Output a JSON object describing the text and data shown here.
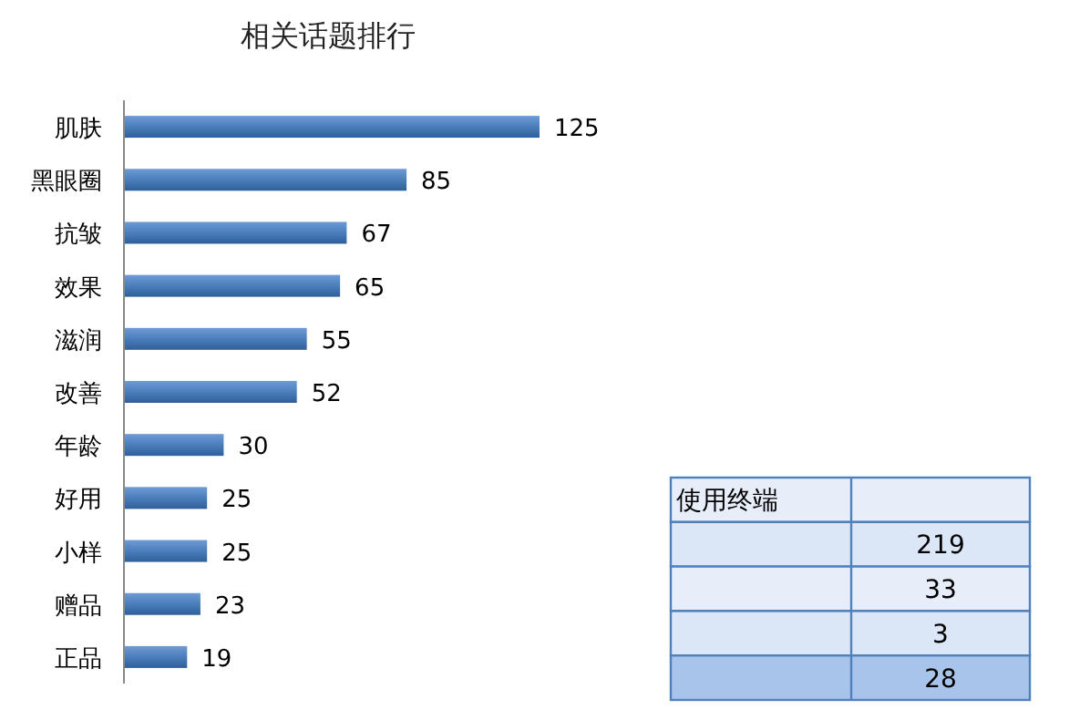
{
  "chart_data": [
    {
      "type": "bar",
      "orientation": "horizontal",
      "title": "相关话题排行",
      "categories": [
        "肌肤",
        "黑眼圈",
        "抗皱",
        "效果",
        "滋润",
        "改善",
        "年龄",
        "好用",
        "小样",
        "赠品",
        "正品"
      ],
      "values": [
        125,
        85,
        67,
        65,
        55,
        52,
        30,
        25,
        25,
        23,
        19
      ],
      "color": "#4a7ebb",
      "data_labels": true
    },
    {
      "type": "other",
      "title": "使用终端",
      "categories": [
        null,
        null,
        null,
        null
      ],
      "values": [
        219,
        33,
        3,
        28
      ],
      "value_labels": [
        "219",
        "33",
        "3",
        "28"
      ]
    }
  ]
}
